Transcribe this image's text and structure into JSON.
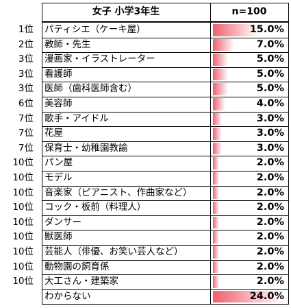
{
  "colors": {
    "bar_start": "#f0606e",
    "bar_end": "#ffffff",
    "border": "#000000"
  },
  "table": {
    "header_label": "女子 小学3年生",
    "header_n": "n=100"
  },
  "chart_data": {
    "type": "table",
    "title": "女子 小学3年生",
    "sample_size": "n=100",
    "max_value": 24.0,
    "rows": [
      {
        "rank": "1位",
        "name": "パティシエ（ケーキ屋）",
        "value": 15.0,
        "label": "15.0%"
      },
      {
        "rank": "2位",
        "name": "教師・先生",
        "value": 7.0,
        "label": "7.0%"
      },
      {
        "rank": "3位",
        "name": "漫画家・イラストレーター",
        "value": 5.0,
        "label": "5.0%"
      },
      {
        "rank": "3位",
        "name": "看護師",
        "value": 5.0,
        "label": "5.0%"
      },
      {
        "rank": "3位",
        "name": "医師（歯科医師含む）",
        "value": 5.0,
        "label": "5.0%"
      },
      {
        "rank": "6位",
        "name": "美容師",
        "value": 4.0,
        "label": "4.0%"
      },
      {
        "rank": "7位",
        "name": "歌手・アイドル",
        "value": 3.0,
        "label": "3.0%"
      },
      {
        "rank": "7位",
        "name": "花屋",
        "value": 3.0,
        "label": "3.0%"
      },
      {
        "rank": "7位",
        "name": "保育士・幼稚園教諭",
        "value": 3.0,
        "label": "3.0%"
      },
      {
        "rank": "10位",
        "name": "パン屋",
        "value": 2.0,
        "label": "2.0%"
      },
      {
        "rank": "10位",
        "name": "モデル",
        "value": 2.0,
        "label": "2.0%"
      },
      {
        "rank": "10位",
        "name": "音楽家（ピアニスト、作曲家など）",
        "value": 2.0,
        "label": "2.0%"
      },
      {
        "rank": "10位",
        "name": "コック・板前（料理人）",
        "value": 2.0,
        "label": "2.0%"
      },
      {
        "rank": "10位",
        "name": "ダンサー",
        "value": 2.0,
        "label": "2.0%"
      },
      {
        "rank": "10位",
        "name": "獣医師",
        "value": 2.0,
        "label": "2.0%"
      },
      {
        "rank": "10位",
        "name": "芸能人（俳優、お笑い芸人など）",
        "value": 2.0,
        "label": "2.0%"
      },
      {
        "rank": "10位",
        "name": "動物園の飼育係",
        "value": 2.0,
        "label": "2.0%"
      },
      {
        "rank": "10位",
        "name": "大工さん・建築家",
        "value": 2.0,
        "label": "2.0%"
      },
      {
        "rank": "",
        "name": "わからない",
        "value": 24.0,
        "label": "24.0%"
      }
    ]
  }
}
